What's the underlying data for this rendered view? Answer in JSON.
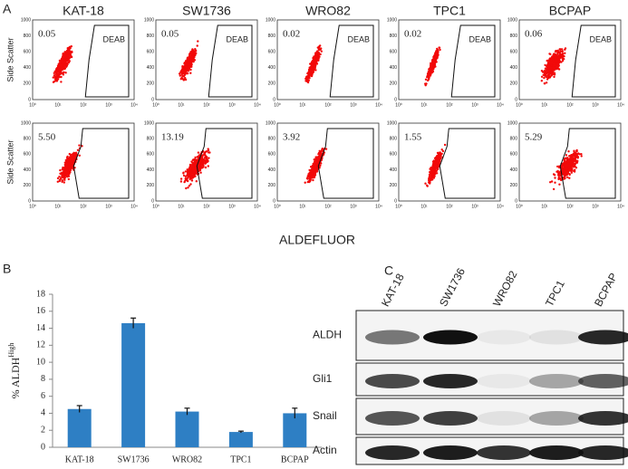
{
  "panel_labels": [
    "A",
    "B",
    "C"
  ],
  "flow": {
    "cell_lines": [
      "KAT-18",
      "SW1736",
      "WRO82",
      "TPC1",
      "BCPAP"
    ],
    "rows": [
      {
        "values": [
          "0.05",
          "0.05",
          "0.02",
          "0.02",
          "0.06"
        ],
        "gate_label": "DEAB"
      },
      {
        "values": [
          "5.50",
          "13.19",
          "3.92",
          "1.55",
          "5.29"
        ]
      }
    ],
    "ylabel": "Side Scatter",
    "xlabel": "ALDEFLUOR",
    "xticks": [
      "10⁰",
      "10¹",
      "10²",
      "10³",
      "10⁴"
    ],
    "yticks": [
      0,
      200,
      400,
      600,
      800,
      1000
    ]
  },
  "chart_data": {
    "type": "bar",
    "ylabel": "% ALDH",
    "ylabel_superscript": "High",
    "categories": [
      "KAT-18",
      "SW1736",
      "WRO82",
      "TPC1",
      "BCPAP"
    ],
    "values": [
      4.5,
      14.6,
      4.2,
      1.8,
      4.0
    ],
    "errors": [
      0.4,
      0.6,
      0.4,
      0.1,
      0.6
    ],
    "color": "#2e7fc4",
    "ylim": [
      0,
      18
    ],
    "yticks": [
      0,
      2,
      4,
      6,
      8,
      10,
      12,
      14,
      16,
      18
    ]
  },
  "blot": {
    "lanes": [
      "KAT-18",
      "SW1736",
      "WRO82",
      "TPC1",
      "BCPAP"
    ],
    "rows": [
      "ALDH",
      "Gli1",
      "Snail",
      "Actin"
    ]
  }
}
